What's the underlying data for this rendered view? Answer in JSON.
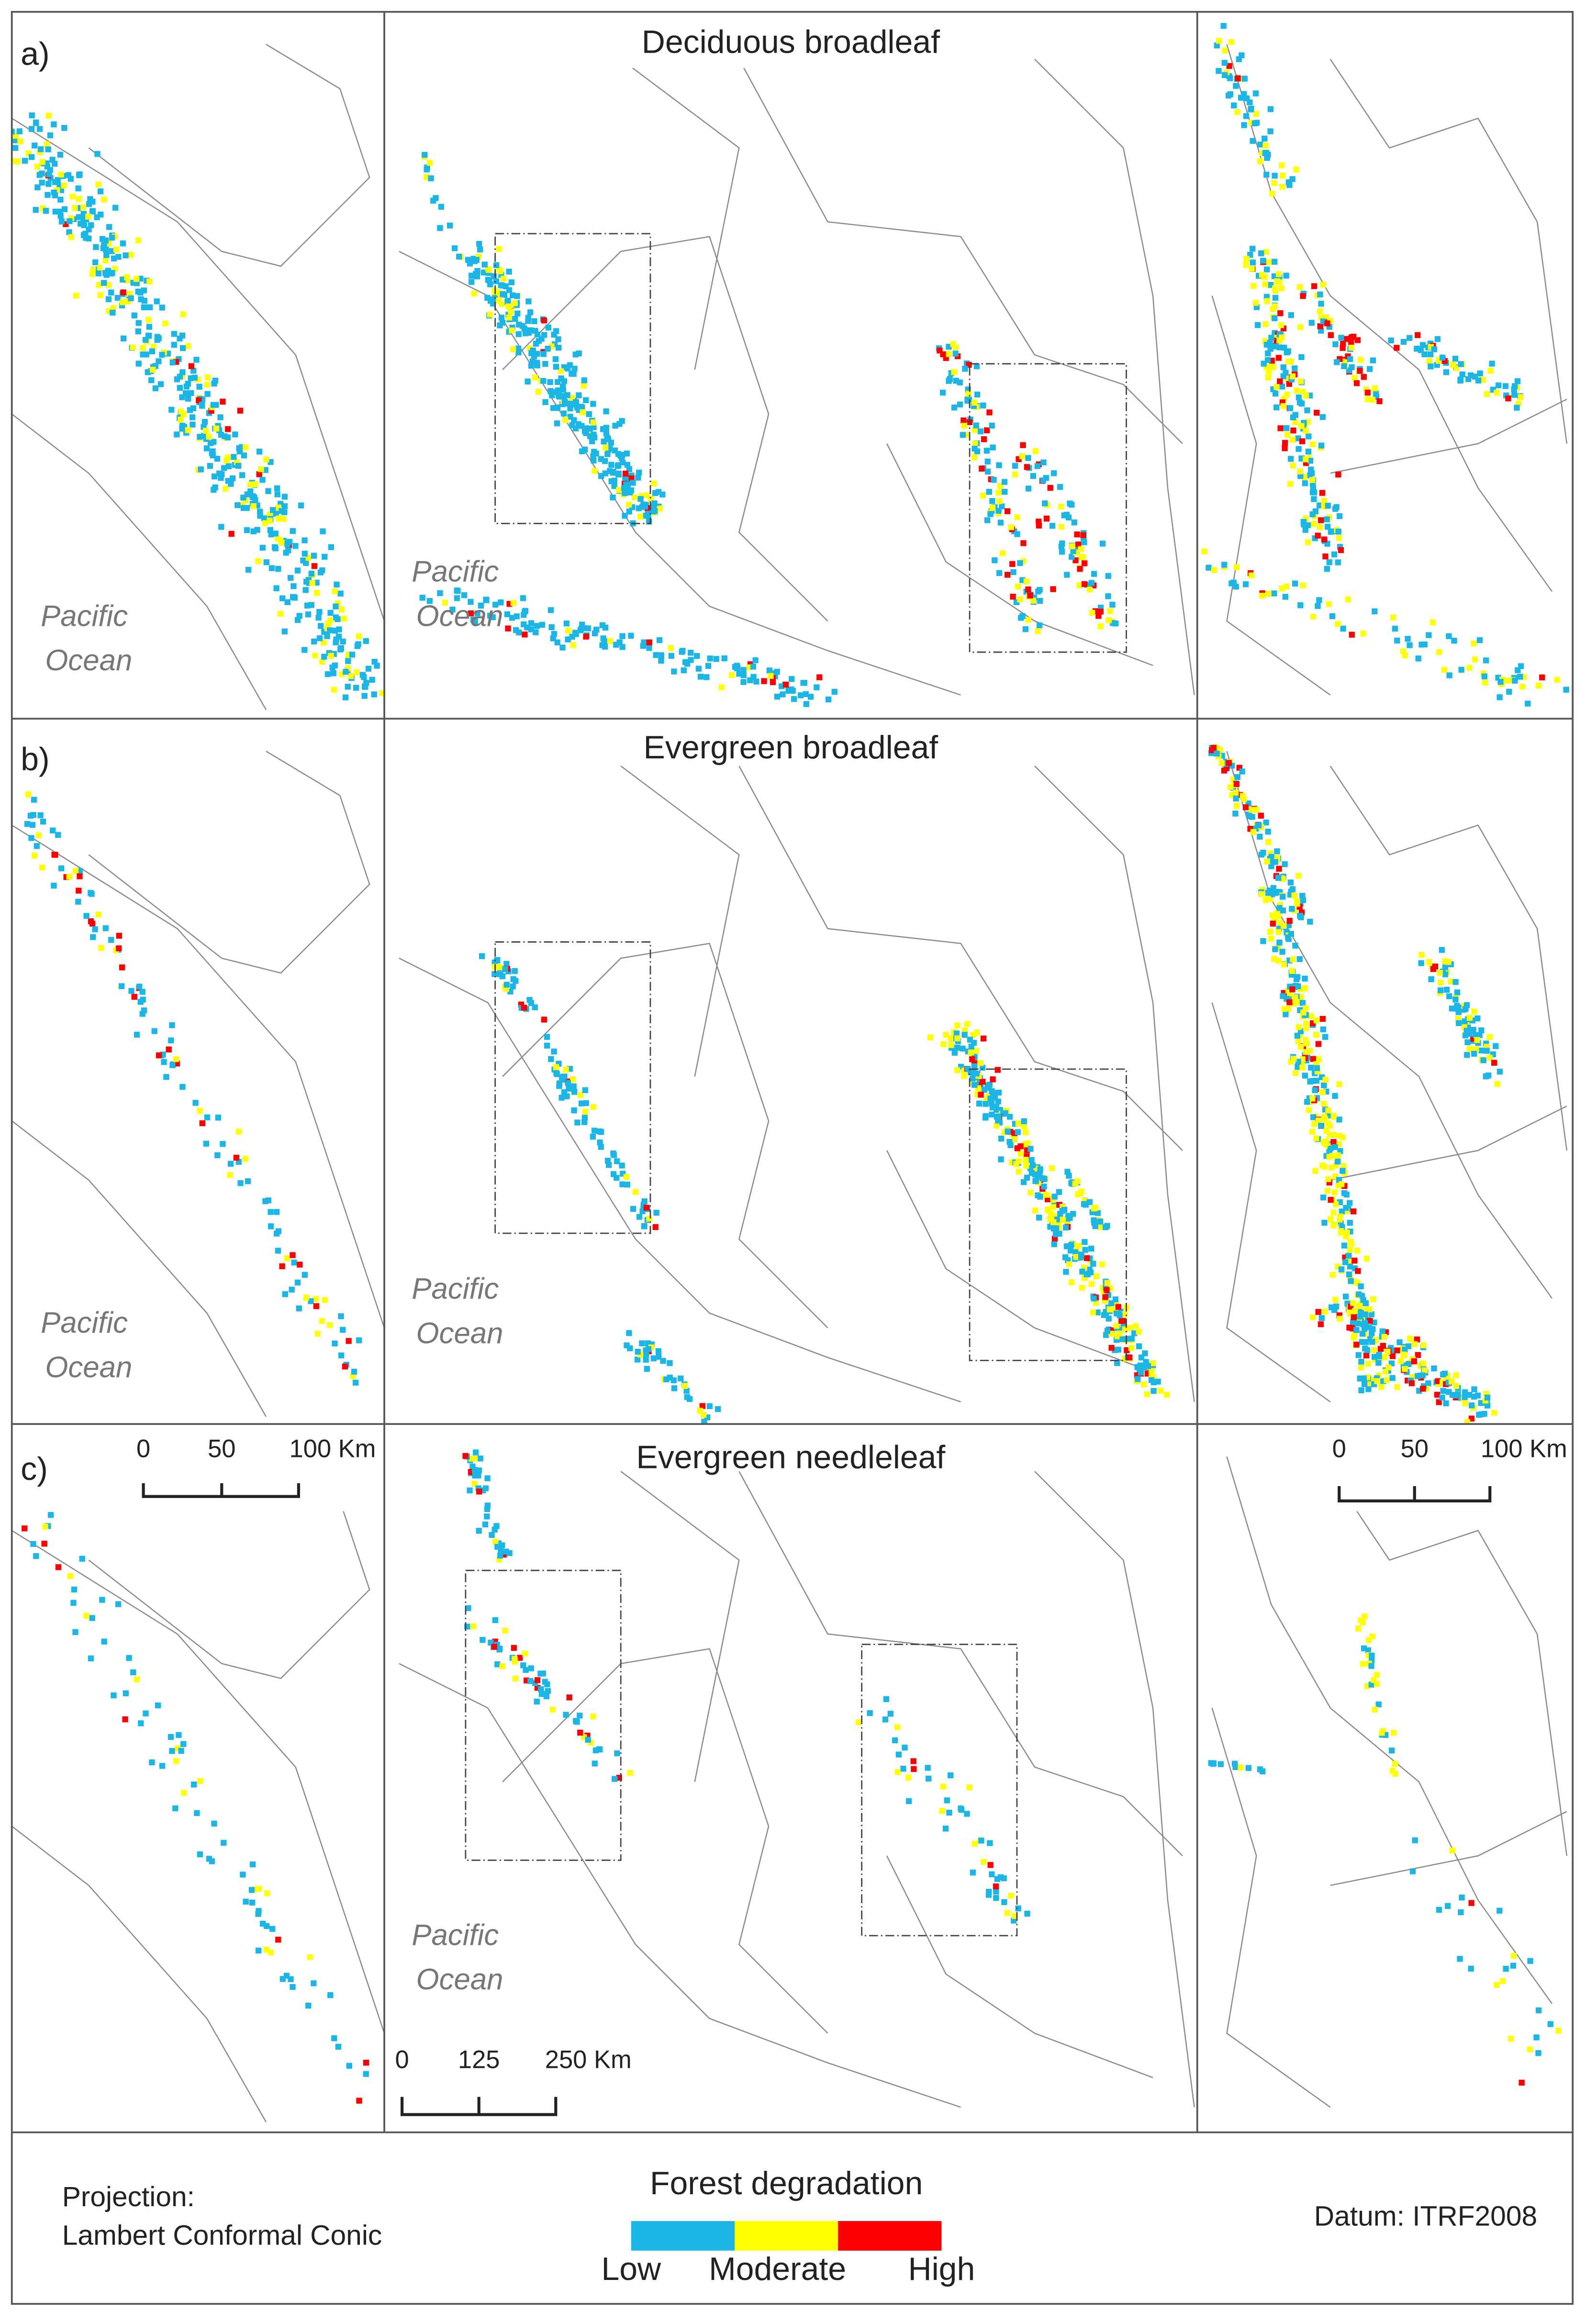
{
  "panels": [
    {
      "label": "a)",
      "title": "Deciduous broadleaf",
      "ocean_left": [
        "Pacific",
        "Ocean"
      ],
      "ocean_center": [
        "Pacific",
        "Ocean"
      ]
    },
    {
      "label": "b)",
      "title": "Evergreen broadleaf",
      "ocean_left": [
        "Pacific",
        "Ocean"
      ],
      "ocean_center": [
        "Pacific",
        "Ocean"
      ]
    },
    {
      "label": "c)",
      "title": "Evergreen needleleaf",
      "ocean_center": [
        "Pacific",
        "Ocean"
      ]
    }
  ],
  "scale_bars": [
    {
      "labels": [
        "0",
        "50",
        "100 Km"
      ]
    },
    {
      "labels": [
        "0",
        "125",
        "250 Km"
      ]
    },
    {
      "labels": [
        "0",
        "50",
        "100 Km"
      ]
    }
  ],
  "legend": {
    "projection_label": "Projection:",
    "projection": "Lambert Conformal Conic",
    "title": "Forest degradation",
    "classes": [
      "Low",
      "Moderate",
      "High"
    ],
    "colors": [
      "#1cb6e6",
      "#ffff00",
      "#ff0000"
    ],
    "datum": "Datum: ITRF2008"
  }
}
